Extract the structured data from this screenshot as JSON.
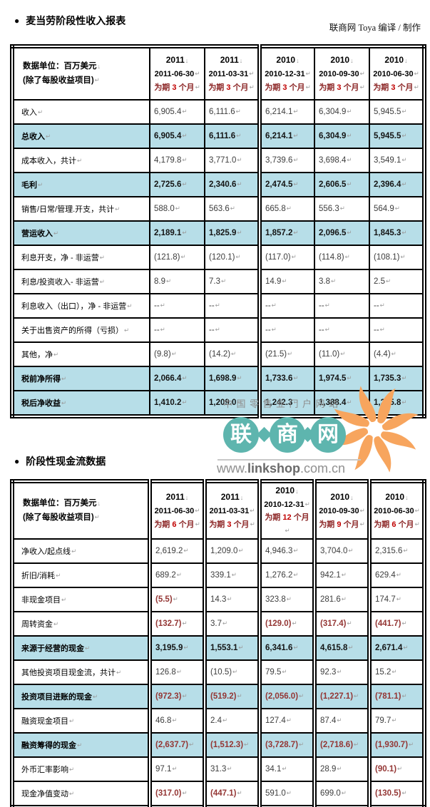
{
  "page": {
    "bullet": "●",
    "income_title": "麦当劳阶段性收入报表",
    "cashflow_title": "阶段性现金流数据",
    "credit": "联商网 Toya 编译 / 制作"
  },
  "colors": {
    "highlight_row_bg": "#B7DEE8",
    "negative_red": "#943634",
    "period_text_red": "#8B2525",
    "period_digit_red": "#C00000",
    "watermark_teal": "#5EB5AE",
    "watermark_orange": "#F7A55E"
  },
  "watermark": {
    "tagline": "中国零售业门户网站",
    "chars": [
      "联",
      "商",
      "网"
    ],
    "url_prefix": "www.",
    "url_bold": "linkshop",
    "url_suffix": ".com.cn"
  },
  "income_table": {
    "unit_line1": "数据单位：百万美元",
    "unit_line2": "(除了每股收益项目)",
    "columns": [
      {
        "year": "2011",
        "date": "2011-06-30",
        "p1": "为期",
        "num": "3",
        "p2": "个月"
      },
      {
        "year": "2011",
        "date": "2011-03-31",
        "p1": "为期",
        "num": "3",
        "p2": "个月"
      },
      {
        "year": "2010",
        "date": "2010-12-31",
        "p1": "为期",
        "num": "3",
        "p2": "个月"
      },
      {
        "year": "2010",
        "date": "2010-09-30",
        "p1": "为期",
        "num": "3",
        "p2": "个月"
      },
      {
        "year": "2010",
        "date": "2010-06-30",
        "p1": "为期",
        "num": "3",
        "p2": "个月"
      }
    ],
    "rows": [
      {
        "label": "收入",
        "hl": false,
        "values": [
          "6,905.4",
          "6,111.6",
          "6,214.1",
          "6,304.9",
          "5,945.5"
        ]
      },
      {
        "label": "总收入",
        "hl": true,
        "values": [
          "6,905.4",
          "6,111.6",
          "6,214.1",
          "6,304.9",
          "5,945.5"
        ]
      },
      {
        "label": "成本收入，共计",
        "hl": false,
        "values": [
          "4,179.8",
          "3,771.0",
          "3,739.6",
          "3,698.4",
          "3,549.1"
        ]
      },
      {
        "label": "毛利",
        "hl": true,
        "values": [
          "2,725.6",
          "2,340.6",
          "2,474.5",
          "2,606.5",
          "2,396.4"
        ]
      },
      {
        "label": "销售/日常/管理.开支，共计",
        "hl": false,
        "values": [
          "588.0",
          "563.6",
          "665.8",
          "556.3",
          "564.9"
        ]
      },
      {
        "label": "营运收入",
        "hl": true,
        "values": [
          "2,189.1",
          "1,825.9",
          "1,857.2",
          "2,096.5",
          "1,845.3"
        ]
      },
      {
        "label": "利息开支，净 - 非运营",
        "hl": false,
        "values": [
          "(121.8)",
          "(120.1)",
          "(117.0)",
          "(114.8)",
          "(108.1)"
        ]
      },
      {
        "label": "利息/投资收入- 非运营",
        "hl": false,
        "values": [
          "8.9",
          "7.3",
          "14.9",
          "3.8",
          "2.5"
        ]
      },
      {
        "label": "利息收入（出口），净 - 非运营",
        "hl": false,
        "values": [
          "--",
          "--",
          "--",
          "--",
          "--"
        ]
      },
      {
        "label": "关于出售资产的所得（亏损）",
        "hl": false,
        "values": [
          "--",
          "--",
          "--",
          "--",
          "--"
        ]
      },
      {
        "label": "其他，净",
        "hl": false,
        "values": [
          "(9.8)",
          "(14.2)",
          "(21.5)",
          "(11.0)",
          "(4.4)"
        ]
      },
      {
        "label": "税前净所得",
        "hl": true,
        "values": [
          "2,066.4",
          "1,698.9",
          "1,733.6",
          "1,974.5",
          "1,735.3"
        ]
      },
      {
        "label": "税后净收益",
        "hl": true,
        "values": [
          "1,410.2",
          "1,209.0",
          "1,242.3",
          "1,388.4",
          "1,225.8"
        ]
      }
    ]
  },
  "cashflow_table": {
    "unit_line1": "数据单位：百万美元",
    "unit_line2": "(除了每股收益项目)",
    "columns": [
      {
        "year": "2011",
        "date": "2011-06-30",
        "p1": "为期",
        "num": "6",
        "p2": "个月"
      },
      {
        "year": "2011",
        "date": "2011-03-31",
        "p1": "为期",
        "num": "3",
        "p2": "个月"
      },
      {
        "year": "2010",
        "date": "2010-12-31",
        "p1": "为期",
        "num": "12",
        "p2": "个月"
      },
      {
        "year": "2010",
        "date": "2010-09-30",
        "p1": "为期",
        "num": "9",
        "p2": "个月"
      },
      {
        "year": "2010",
        "date": "2010-06-30",
        "p1": "为期",
        "num": "6",
        "p2": "个月"
      }
    ],
    "rows": [
      {
        "label": "净收入/起点线",
        "hl": false,
        "values": [
          "2,619.2",
          "1,209.0",
          "4,946.3",
          "3,704.0",
          "2,315.6"
        ]
      },
      {
        "label": "折旧/消耗",
        "hl": false,
        "values": [
          "689.2",
          "339.1",
          "1,276.2",
          "942.1",
          "629.4"
        ]
      },
      {
        "label": "非现金项目",
        "hl": false,
        "values": [
          "(5.5)",
          "14.3",
          "323.8",
          "281.6",
          "174.7"
        ],
        "red": [
          true,
          false,
          false,
          false,
          false
        ]
      },
      {
        "label": "周转资金",
        "hl": false,
        "values": [
          "(132.7)",
          "3.7",
          "(129.0)",
          "(317.4)",
          "(441.7)"
        ],
        "red": [
          true,
          false,
          true,
          true,
          true
        ]
      },
      {
        "label": "来源于经营的现金",
        "hl": true,
        "values": [
          "3,195.9",
          "1,553.1",
          "6,341.6",
          "4,615.8",
          "2,671.4"
        ]
      },
      {
        "label": "其他投资项目现金流，共计",
        "hl": false,
        "values": [
          "126.8",
          "(10.5)",
          "79.5",
          "92.3",
          "15.2"
        ]
      },
      {
        "label": "投资项目进账的现金",
        "hl": true,
        "values": [
          "(972.3)",
          "(519.2)",
          "(2,056.0)",
          "(1,227.1)",
          "(781.1)"
        ],
        "red": [
          true,
          true,
          true,
          true,
          true
        ]
      },
      {
        "label": "融资现金项目",
        "hl": false,
        "values": [
          "46.8",
          "2.4",
          "127.4",
          "87.4",
          "79.7"
        ]
      },
      {
        "label": "融资筹得的现金",
        "hl": true,
        "values": [
          "(2,637.7)",
          "(1,512.3)",
          "(3,728.7)",
          "(2,718.6)",
          "(1,930.7)"
        ],
        "red": [
          true,
          true,
          true,
          true,
          true
        ]
      },
      {
        "label": "外币汇率影响",
        "hl": false,
        "values": [
          "97.1",
          "31.3",
          "34.1",
          "28.9",
          "(90.1)"
        ],
        "red": [
          false,
          false,
          false,
          false,
          true
        ]
      },
      {
        "label": "现金净值变动",
        "hl": false,
        "values": [
          "(317.0)",
          "(447.1)",
          "591.0",
          "699.0",
          "(130.5)"
        ],
        "red": [
          true,
          true,
          false,
          false,
          true
        ]
      }
    ]
  }
}
